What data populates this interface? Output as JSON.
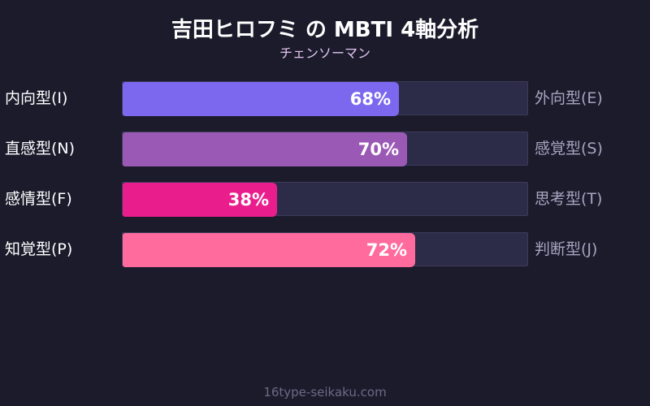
{
  "chart_data": {
    "type": "bar",
    "title": "吉田ヒロフミ の MBTI 4軸分析",
    "subtitle": "チェンソーマン",
    "xlim": [
      0,
      100
    ],
    "rows": [
      {
        "left_label": "内向型(I)",
        "right_label": "外向型(E)",
        "value": 68,
        "value_label": "68%",
        "color": "#7c68ee"
      },
      {
        "left_label": "直感型(N)",
        "right_label": "感覚型(S)",
        "value": 70,
        "value_label": "70%",
        "color": "#9b59b6"
      },
      {
        "left_label": "感情型(F)",
        "right_label": "思考型(T)",
        "value": 38,
        "value_label": "38%",
        "color": "#e91e8c"
      },
      {
        "left_label": "知覚型(P)",
        "right_label": "判断型(J)",
        "value": 72,
        "value_label": "72%",
        "color": "#ff6b9d"
      }
    ]
  },
  "footer": "16type-seikaku.com",
  "colors": {
    "background": "#1c1b2c",
    "track": "#2c2b48",
    "subtitle": "#e2c5f0"
  }
}
